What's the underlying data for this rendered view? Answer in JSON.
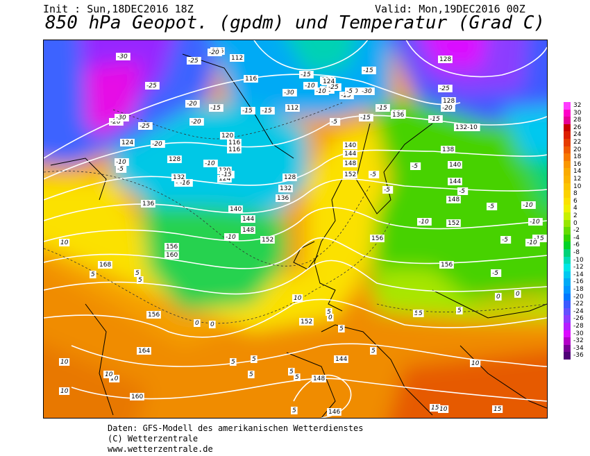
{
  "header": {
    "init": "Init : Sun,18DEC2016 18Z",
    "valid": "Valid: Mon,19DEC2016 00Z",
    "title": "850 hPa Geopot. (gpdm) und Temperatur (Grad C)"
  },
  "legend": {
    "values": [
      "32",
      "30",
      "28",
      "26",
      "24",
      "22",
      "20",
      "18",
      "16",
      "14",
      "12",
      "10",
      "8",
      "6",
      "4",
      "2",
      "0",
      "-2",
      "-4",
      "-6",
      "-8",
      "-10",
      "-12",
      "-14",
      "-16",
      "-18",
      "-20",
      "-22",
      "-24",
      "-26",
      "-28",
      "-30",
      "-32",
      "-34",
      "-36"
    ],
    "colors": [
      "#ff3cff",
      "#ff00c8",
      "#e60096",
      "#c80000",
      "#dc1e00",
      "#e63c00",
      "#f05a00",
      "#f77800",
      "#fa9600",
      "#faaa00",
      "#fbb400",
      "#fbc400",
      "#fbd200",
      "#fbe100",
      "#f0f000",
      "#c8f000",
      "#96e600",
      "#64dc00",
      "#32d200",
      "#00d228",
      "#00d278",
      "#00dcb4",
      "#00e6e6",
      "#00c8f0",
      "#00aaf5",
      "#0096ff",
      "#0078ff",
      "#3c5aff",
      "#6450ff",
      "#8c3cff",
      "#b41eff",
      "#dc0aff",
      "#b400c8",
      "#780096",
      "#500078"
    ]
  },
  "map": {
    "geopotential_labels": [
      {
        "t": "116"
      },
      {
        "t": "112"
      },
      {
        "t": "116"
      },
      {
        "t": "112"
      },
      {
        "t": "124"
      },
      {
        "t": "128"
      },
      {
        "t": "128"
      },
      {
        "t": "124"
      },
      {
        "t": "128"
      },
      {
        "t": "132"
      },
      {
        "t": "120"
      },
      {
        "t": "124"
      },
      {
        "t": "128"
      },
      {
        "t": "132"
      },
      {
        "t": "136"
      },
      {
        "t": "140"
      },
      {
        "t": "144"
      },
      {
        "t": "148"
      },
      {
        "t": "152"
      },
      {
        "t": "156"
      },
      {
        "t": "160"
      },
      {
        "t": "168"
      },
      {
        "t": "164"
      },
      {
        "t": "160"
      },
      {
        "t": "140"
      },
      {
        "t": "144"
      },
      {
        "t": "148"
      },
      {
        "t": "152"
      },
      {
        "t": "156"
      },
      {
        "t": "136"
      },
      {
        "t": "132-10"
      },
      {
        "t": "138"
      },
      {
        "t": "140"
      },
      {
        "t": "144"
      },
      {
        "t": "148"
      },
      {
        "t": "152"
      },
      {
        "t": "156"
      },
      {
        "t": "156"
      },
      {
        "t": "152"
      },
      {
        "t": "144"
      },
      {
        "t": "148"
      },
      {
        "t": "146"
      },
      {
        "t": "124"
      },
      {
        "t": "120"
      },
      {
        "t": "116"
      },
      {
        "t": "116"
      },
      {
        "t": "136"
      },
      {
        "t": "136"
      },
      {
        "t": "124"
      }
    ],
    "temperature_labels": [
      {
        "t": "-30"
      },
      {
        "t": "-25"
      },
      {
        "t": "-25"
      },
      {
        "t": "-20"
      },
      {
        "t": "-20"
      },
      {
        "t": "-15"
      },
      {
        "t": "-15"
      },
      {
        "t": "-15"
      },
      {
        "t": "-30"
      },
      {
        "t": "-25"
      },
      {
        "t": "-20"
      },
      {
        "t": "-20"
      },
      {
        "t": "-10"
      },
      {
        "t": "-5"
      },
      {
        "t": "-10"
      },
      {
        "t": "-15"
      },
      {
        "t": "-16"
      },
      {
        "t": "-10"
      },
      {
        "t": "-15"
      },
      {
        "t": "-30"
      },
      {
        "t": "-25"
      },
      {
        "t": "-20"
      },
      {
        "t": "-15"
      },
      {
        "t": "-15"
      },
      {
        "t": "-10"
      },
      {
        "t": "-5"
      },
      {
        "t": "-5"
      },
      {
        "t": "-5"
      },
      {
        "t": "-5"
      },
      {
        "t": "-10"
      },
      {
        "t": "-10"
      },
      {
        "t": "-15"
      },
      {
        "t": "-5"
      },
      {
        "t": "-5"
      },
      {
        "t": "-10"
      },
      {
        "t": "-15"
      },
      {
        "t": "-5"
      },
      {
        "t": "-5"
      },
      {
        "t": "-10"
      },
      {
        "t": "-20"
      },
      {
        "t": "-25"
      },
      {
        "t": "-30"
      },
      {
        "t": "-15"
      },
      {
        "t": "-20"
      },
      {
        "t": "-15"
      },
      {
        "t": "-10"
      },
      {
        "t": "-10"
      },
      {
        "t": "-5"
      },
      {
        "t": "-16"
      },
      {
        "t": "10"
      },
      {
        "t": "10"
      },
      {
        "t": "5"
      },
      {
        "t": "5"
      },
      {
        "t": "5"
      },
      {
        "t": "0"
      },
      {
        "t": "0"
      },
      {
        "t": "5"
      },
      {
        "t": "5"
      },
      {
        "t": "5"
      },
      {
        "t": "10"
      },
      {
        "t": "10"
      },
      {
        "t": "10"
      },
      {
        "t": "5"
      },
      {
        "t": "5"
      },
      {
        "t": "5"
      },
      {
        "t": "5"
      },
      {
        "t": "5"
      },
      {
        "t": "5"
      },
      {
        "t": "0"
      },
      {
        "t": "5"
      },
      {
        "t": "10"
      },
      {
        "t": "15"
      },
      {
        "t": "15"
      },
      {
        "t": "5"
      },
      {
        "t": "0"
      },
      {
        "t": "0"
      },
      {
        "t": "5"
      },
      {
        "t": "10"
      },
      {
        "t": "10"
      },
      {
        "t": "5"
      }
    ]
  },
  "footer": {
    "line1": "Daten: GFS-Modell des amerikanischen Wetterdienstes",
    "line2": "(C) Wetterzentrale",
    "line3": "www.wetterzentrale.de"
  }
}
